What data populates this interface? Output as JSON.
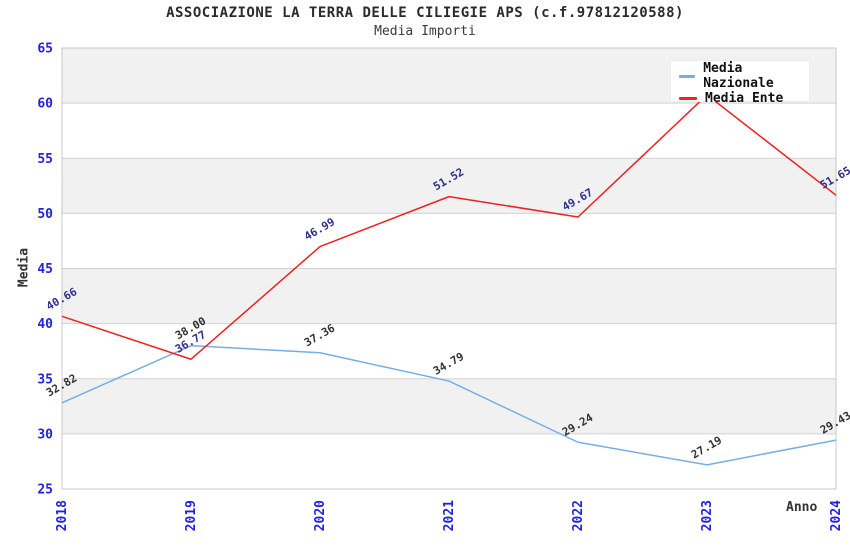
{
  "chart_data": {
    "type": "line",
    "title": "ASSOCIAZIONE LA TERRA DELLE CILIEGIE APS (c.f.97812120588)",
    "subtitle": "Media Importi",
    "xlabel": "Anno",
    "ylabel": "Media",
    "x": [
      2018,
      2019,
      2020,
      2021,
      2022,
      2023,
      2024
    ],
    "xticks": [
      "2018",
      "2019",
      "2020",
      "2021",
      "2022",
      "2023",
      "2024"
    ],
    "yticks": [
      25,
      30,
      35,
      40,
      45,
      50,
      55,
      60,
      65
    ],
    "ylim": [
      25,
      65
    ],
    "grid": "horizontal",
    "legend_position": "top-right",
    "series": [
      {
        "name": "Media Nazionale",
        "color": "#77aee3",
        "values": [
          32.82,
          38.0,
          37.36,
          34.79,
          29.24,
          27.19,
          29.43
        ],
        "labels": [
          "32.82",
          "38.00",
          "37.36",
          "34.79",
          "29.24",
          "27.19",
          "29.43"
        ],
        "label_color": "#333333"
      },
      {
        "name": "Media Ente",
        "color": "#ee2222",
        "values": [
          40.66,
          36.77,
          46.99,
          51.52,
          49.67,
          60.75,
          51.65
        ],
        "labels": [
          "40.66",
          "36.77",
          "46.99",
          "51.52",
          "49.67",
          null,
          "51.65"
        ],
        "label_color": "#30308c",
        "note": "2023 value label hidden behind legend; value estimated from line position"
      }
    ],
    "colors": {
      "tick_label": "#2222dd",
      "band": "#f1f1f1",
      "grid_line": "#d2d2d2",
      "plot_border": "#c8c8c8"
    }
  }
}
